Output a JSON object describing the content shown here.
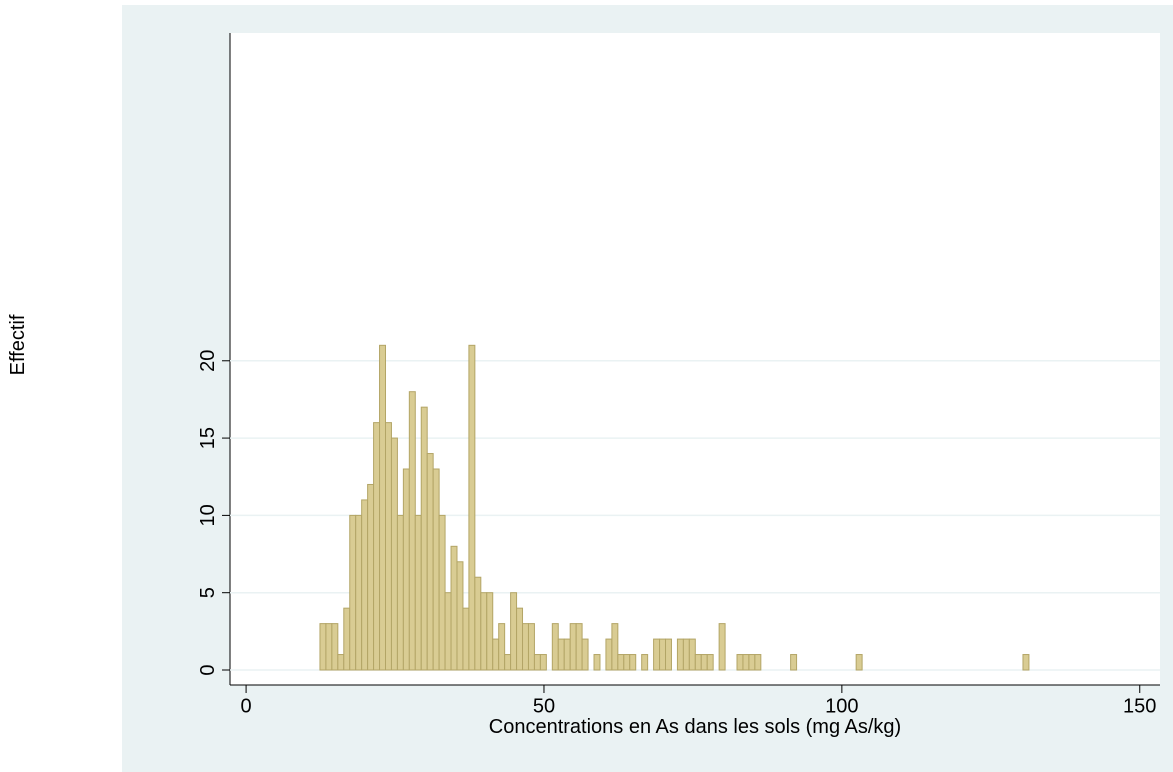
{
  "chart_data": {
    "type": "histogram",
    "x_label": "Concentrations en As dans les sols (mg As/kg)",
    "y_label": "Effectif",
    "bins": [
      12.4,
      13.4,
      14.4,
      15.4,
      16.4,
      17.4,
      18.4,
      19.4,
      20.4,
      21.4,
      22.4,
      23.4,
      24.4,
      25.4,
      26.4,
      27.4,
      28.4,
      29.4,
      30.4,
      31.4,
      32.4,
      33.4,
      34.4,
      35.4,
      36.4,
      37.4,
      38.4,
      39.4,
      40.4,
      41.4,
      42.4,
      43.4,
      44.4,
      45.4,
      46.4,
      47.4,
      48.4,
      49.4,
      50.4,
      51.4,
      52.4,
      53.4,
      54.4,
      55.4,
      56.4,
      57.4,
      58.4,
      59.4,
      60.4,
      61.4,
      62.4,
      63.4,
      64.4,
      65.4,
      66.4,
      67.4,
      68.4,
      69.4,
      70.4,
      71.4,
      72.4,
      73.4,
      74.4,
      75.4,
      76.4,
      77.4,
      78.4,
      79.4,
      80.4,
      81.4,
      82.4,
      83.4,
      84.4,
      85.4,
      86.4,
      87.4,
      88.4,
      89.4,
      90.4,
      91.4,
      92.4,
      93.4,
      94.4,
      95.4,
      96.4,
      97.4,
      98.4,
      99.4,
      100.4,
      101.4,
      102.4,
      103.4,
      104.4,
      105.4,
      106.4,
      107.4,
      108.4,
      109.4,
      110.4,
      111.4,
      112.4,
      113.4,
      114.4,
      115.4,
      116.4,
      117.4,
      118.4,
      119.4,
      120.4,
      121.4,
      122.4,
      123.4,
      124.4,
      125.4,
      126.4,
      127.4,
      128.4,
      129.4,
      130.4,
      131.4
    ],
    "values": [
      3,
      3,
      3,
      1,
      4,
      10,
      10,
      11,
      12,
      16,
      21,
      16,
      15,
      10,
      13,
      18,
      10,
      17,
      14,
      13,
      10,
      5,
      8,
      7,
      4,
      21,
      6,
      5,
      5,
      2,
      3,
      1,
      5,
      4,
      3,
      3,
      1,
      1,
      0,
      3,
      2,
      2,
      3,
      3,
      2,
      0,
      1,
      0,
      2,
      3,
      1,
      1,
      1,
      0,
      1,
      0,
      2,
      2,
      2,
      0,
      2,
      2,
      2,
      1,
      1,
      1,
      0,
      3,
      0,
      0,
      1,
      1,
      1,
      1,
      0,
      0,
      0,
      0,
      0,
      1,
      0,
      0,
      0,
      0,
      0,
      0,
      0,
      0,
      0,
      0,
      1,
      0,
      0,
      0,
      0,
      0,
      0,
      0,
      0,
      0,
      0,
      0,
      0,
      0,
      0,
      0,
      0,
      0,
      0,
      0,
      0,
      0,
      0,
      0,
      0,
      0,
      0,
      0,
      1
    ],
    "color": "#d9cc93",
    "edge_color": "#b3a566",
    "xlim": [
      -2.7,
      153.4
    ],
    "ylim": [
      0,
      41.2
    ],
    "xticks": [
      0,
      50,
      100,
      150
    ],
    "yticks": [
      0,
      5,
      10,
      15,
      20
    ],
    "grid": true
  }
}
